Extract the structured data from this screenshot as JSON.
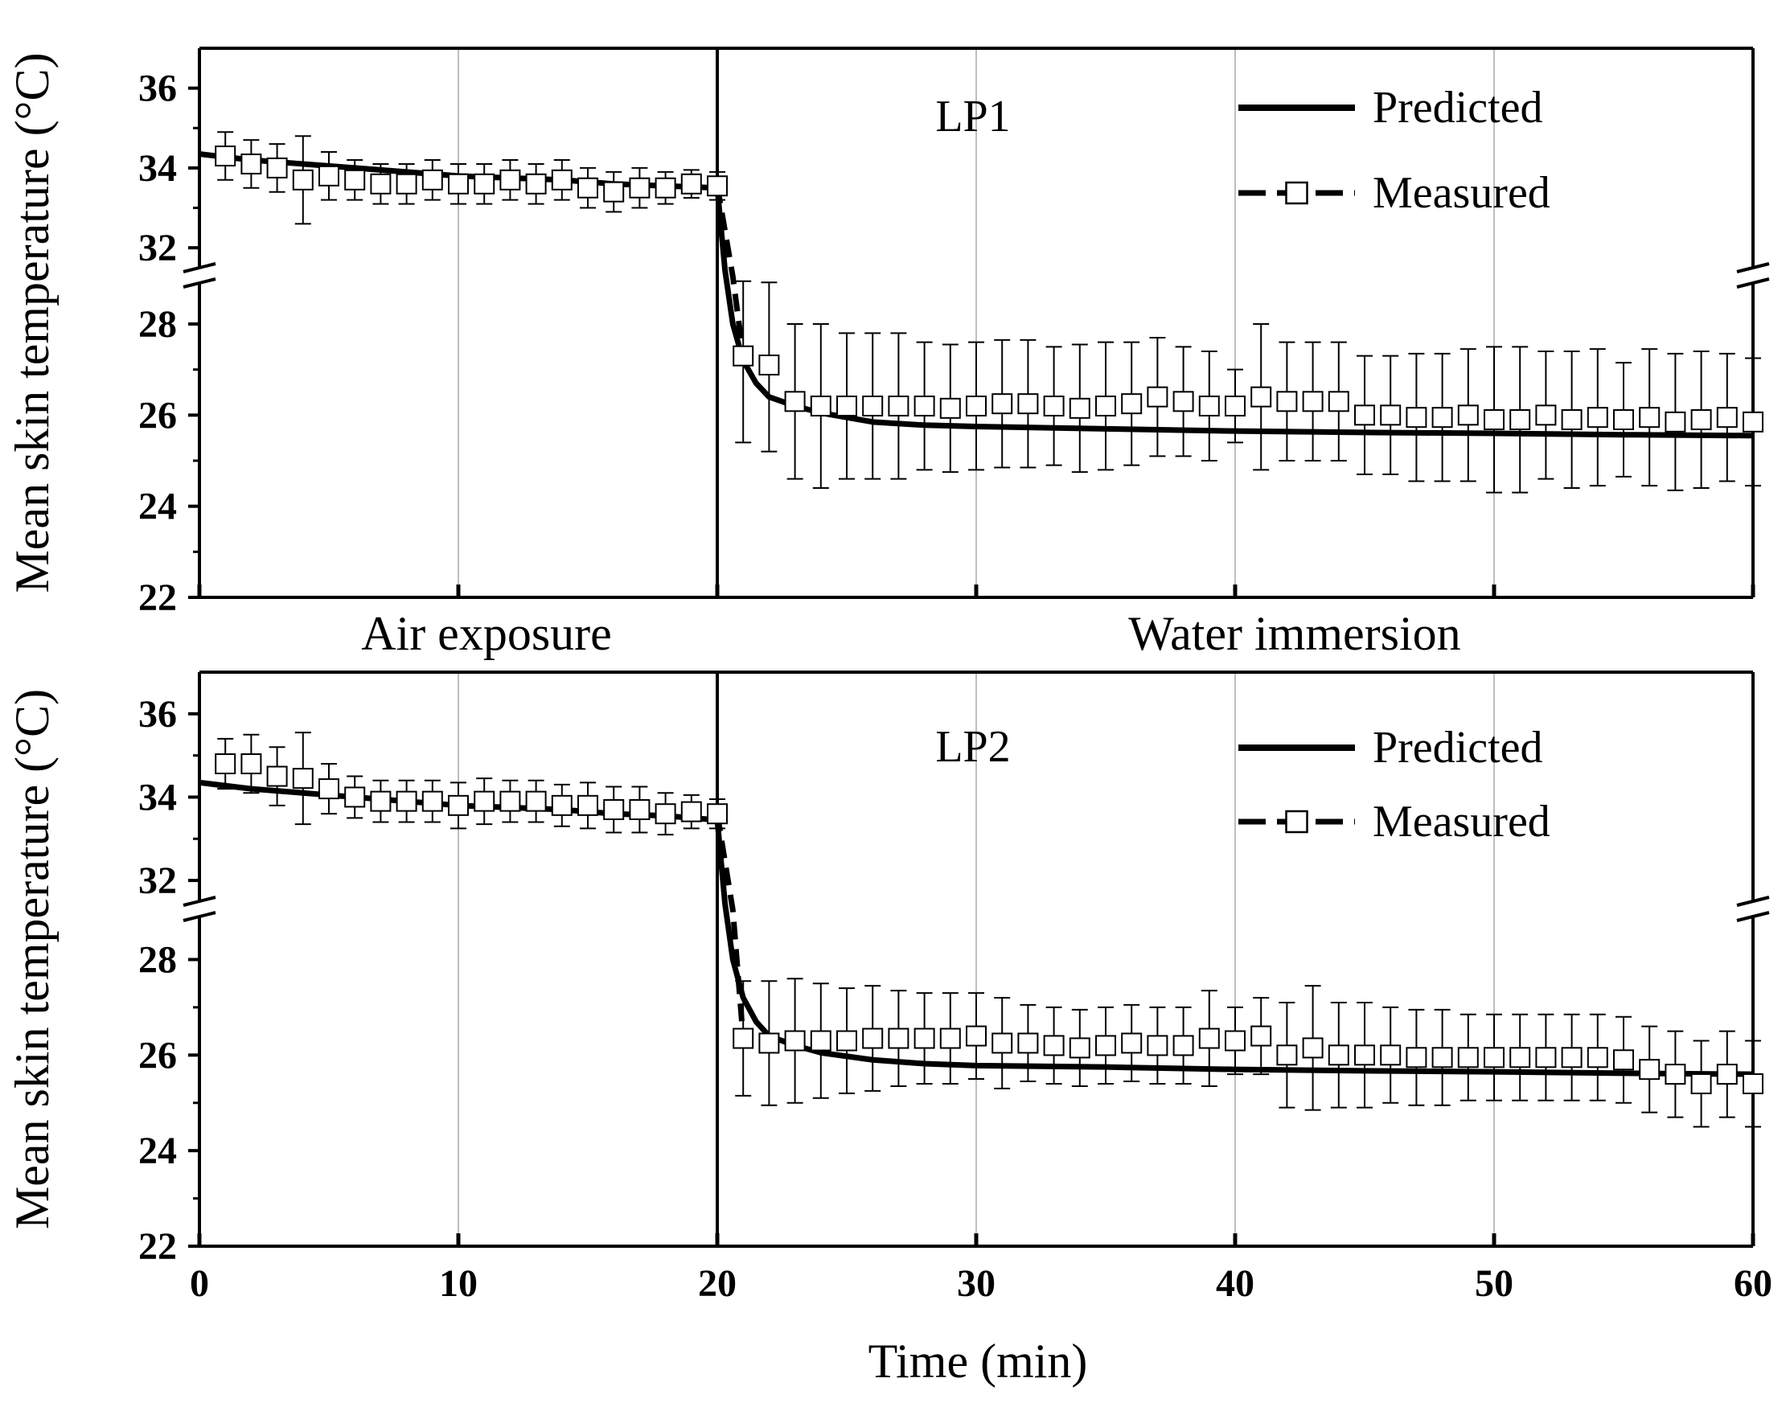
{
  "figure": {
    "xlabel": "Time (min)",
    "phase_labels": [
      "Air exposure",
      "Water immersion"
    ]
  },
  "chart_data": [
    {
      "type": "line",
      "panel_label": "LP1",
      "xlabel": "Time (min)",
      "ylabel": "Mean skin  temperature (°C)",
      "xlim": [
        0,
        60
      ],
      "ylim": [
        22,
        37
      ],
      "axis_break": [
        28.9,
        31.5
      ],
      "x_ticks": [
        0,
        10,
        20,
        30,
        40,
        50,
        60
      ],
      "y_ticks": [
        22,
        24,
        26,
        28,
        32,
        34,
        36
      ],
      "grid": "vertical",
      "event_line_x": 20,
      "legend": {
        "position": "top-right",
        "entries": [
          "Predicted",
          "Measured"
        ]
      },
      "series": [
        {
          "name": "Predicted",
          "style": "solid",
          "x": [
            0,
            2,
            4,
            6,
            8,
            10,
            12,
            14,
            16,
            18,
            20,
            20.3,
            20.6,
            21,
            21.5,
            22,
            23,
            24,
            26,
            28,
            30,
            35,
            40,
            45,
            50,
            55,
            60
          ],
          "y": [
            34.35,
            34.2,
            34.1,
            34.0,
            33.9,
            33.8,
            33.75,
            33.7,
            33.6,
            33.55,
            33.5,
            31.0,
            28.0,
            27.2,
            26.7,
            26.4,
            26.2,
            26.05,
            25.85,
            25.78,
            25.75,
            25.7,
            25.65,
            25.62,
            25.6,
            25.57,
            25.55
          ]
        },
        {
          "name": "Measured",
          "style": "dashed-square",
          "x": [
            1,
            2,
            3,
            4,
            5,
            6,
            7,
            8,
            9,
            10,
            11,
            12,
            13,
            14,
            15,
            16,
            17,
            18,
            19,
            20,
            21,
            22,
            23,
            24,
            25,
            26,
            27,
            28,
            29,
            30,
            31,
            32,
            33,
            34,
            35,
            36,
            37,
            38,
            39,
            40,
            41,
            42,
            43,
            44,
            45,
            46,
            47,
            48,
            49,
            50,
            51,
            52,
            53,
            54,
            55,
            56,
            57,
            58,
            59,
            60
          ],
          "y": [
            34.3,
            34.1,
            34.0,
            33.7,
            33.8,
            33.7,
            33.6,
            33.6,
            33.7,
            33.6,
            33.6,
            33.7,
            33.6,
            33.7,
            33.5,
            33.4,
            33.5,
            33.5,
            33.6,
            33.55,
            27.3,
            27.1,
            26.3,
            26.2,
            26.2,
            26.2,
            26.2,
            26.2,
            26.15,
            26.2,
            26.25,
            26.25,
            26.2,
            26.15,
            26.2,
            26.25,
            26.4,
            26.3,
            26.2,
            26.2,
            26.4,
            26.3,
            26.3,
            26.3,
            26.0,
            26.0,
            25.95,
            25.95,
            26.0,
            25.9,
            25.9,
            26.0,
            25.9,
            25.95,
            25.9,
            25.95,
            25.85,
            25.9,
            25.95,
            25.85
          ],
          "error": [
            0.6,
            0.6,
            0.6,
            1.1,
            0.6,
            0.5,
            0.5,
            0.5,
            0.5,
            0.5,
            0.5,
            0.5,
            0.5,
            0.5,
            0.5,
            0.5,
            0.5,
            0.4,
            0.35,
            0.35,
            1.9,
            1.9,
            1.7,
            1.8,
            1.6,
            1.6,
            1.6,
            1.4,
            1.4,
            1.4,
            1.4,
            1.4,
            1.3,
            1.4,
            1.4,
            1.35,
            1.3,
            1.2,
            1.2,
            0.8,
            1.6,
            1.3,
            1.3,
            1.3,
            1.3,
            1.3,
            1.4,
            1.4,
            1.45,
            1.6,
            1.6,
            1.4,
            1.5,
            1.5,
            1.25,
            1.5,
            1.5,
            1.5,
            1.4,
            1.4
          ]
        }
      ]
    },
    {
      "type": "line",
      "panel_label": "LP2",
      "xlabel": "Time (min)",
      "ylabel": "Mean skin  temperature (°C)",
      "xlim": [
        0,
        60
      ],
      "ylim": [
        22,
        37
      ],
      "axis_break": [
        28.9,
        31.5
      ],
      "x_ticks": [
        0,
        10,
        20,
        30,
        40,
        50,
        60
      ],
      "y_ticks": [
        22,
        24,
        26,
        28,
        32,
        34,
        36
      ],
      "grid": "vertical",
      "event_line_x": 20,
      "legend": {
        "position": "top-right",
        "entries": [
          "Predicted",
          "Measured"
        ]
      },
      "series": [
        {
          "name": "Predicted",
          "style": "solid",
          "x": [
            0,
            2,
            4,
            6,
            8,
            10,
            12,
            14,
            16,
            18,
            20,
            20.3,
            20.6,
            21,
            21.5,
            22,
            23,
            24,
            26,
            28,
            30,
            35,
            40,
            45,
            50,
            55,
            60
          ],
          "y": [
            34.35,
            34.2,
            34.1,
            34.0,
            33.9,
            33.8,
            33.75,
            33.7,
            33.6,
            33.55,
            33.45,
            31.0,
            28.0,
            27.2,
            26.7,
            26.4,
            26.2,
            26.05,
            25.9,
            25.82,
            25.78,
            25.75,
            25.7,
            25.67,
            25.65,
            25.62,
            25.6
          ]
        },
        {
          "name": "Measured",
          "style": "dashed-square",
          "x": [
            1,
            2,
            3,
            4,
            5,
            6,
            7,
            8,
            9,
            10,
            11,
            12,
            13,
            14,
            15,
            16,
            17,
            18,
            19,
            20,
            21,
            22,
            23,
            24,
            25,
            26,
            27,
            28,
            29,
            30,
            31,
            32,
            33,
            34,
            35,
            36,
            37,
            38,
            39,
            40,
            41,
            42,
            43,
            44,
            45,
            46,
            47,
            48,
            49,
            50,
            51,
            52,
            53,
            54,
            55,
            56,
            57,
            58,
            59,
            60
          ],
          "y": [
            34.8,
            34.8,
            34.5,
            34.45,
            34.2,
            34.0,
            33.9,
            33.9,
            33.9,
            33.8,
            33.9,
            33.9,
            33.9,
            33.8,
            33.8,
            33.7,
            33.7,
            33.6,
            33.65,
            33.6,
            26.35,
            26.25,
            26.3,
            26.3,
            26.3,
            26.35,
            26.35,
            26.35,
            26.35,
            26.4,
            26.25,
            26.25,
            26.2,
            26.15,
            26.2,
            26.25,
            26.2,
            26.2,
            26.35,
            26.3,
            26.4,
            26.0,
            26.15,
            26.0,
            26.0,
            26.0,
            25.95,
            25.95,
            25.95,
            25.95,
            25.95,
            25.95,
            25.95,
            25.95,
            25.9,
            25.7,
            25.6,
            25.4,
            25.6,
            25.4
          ],
          "error": [
            0.6,
            0.7,
            0.7,
            1.1,
            0.6,
            0.5,
            0.5,
            0.5,
            0.5,
            0.55,
            0.55,
            0.5,
            0.5,
            0.5,
            0.55,
            0.55,
            0.55,
            0.5,
            0.4,
            0.35,
            1.2,
            1.3,
            1.3,
            1.2,
            1.1,
            1.1,
            1.0,
            0.95,
            0.95,
            0.9,
            0.95,
            0.8,
            0.8,
            0.8,
            0.8,
            0.8,
            0.8,
            0.8,
            1.0,
            0.7,
            0.8,
            1.1,
            1.3,
            1.1,
            1.1,
            1.0,
            1.0,
            1.0,
            0.9,
            0.9,
            0.9,
            0.9,
            0.9,
            0.9,
            0.9,
            0.9,
            0.9,
            0.9,
            0.9,
            0.9
          ]
        }
      ]
    }
  ]
}
